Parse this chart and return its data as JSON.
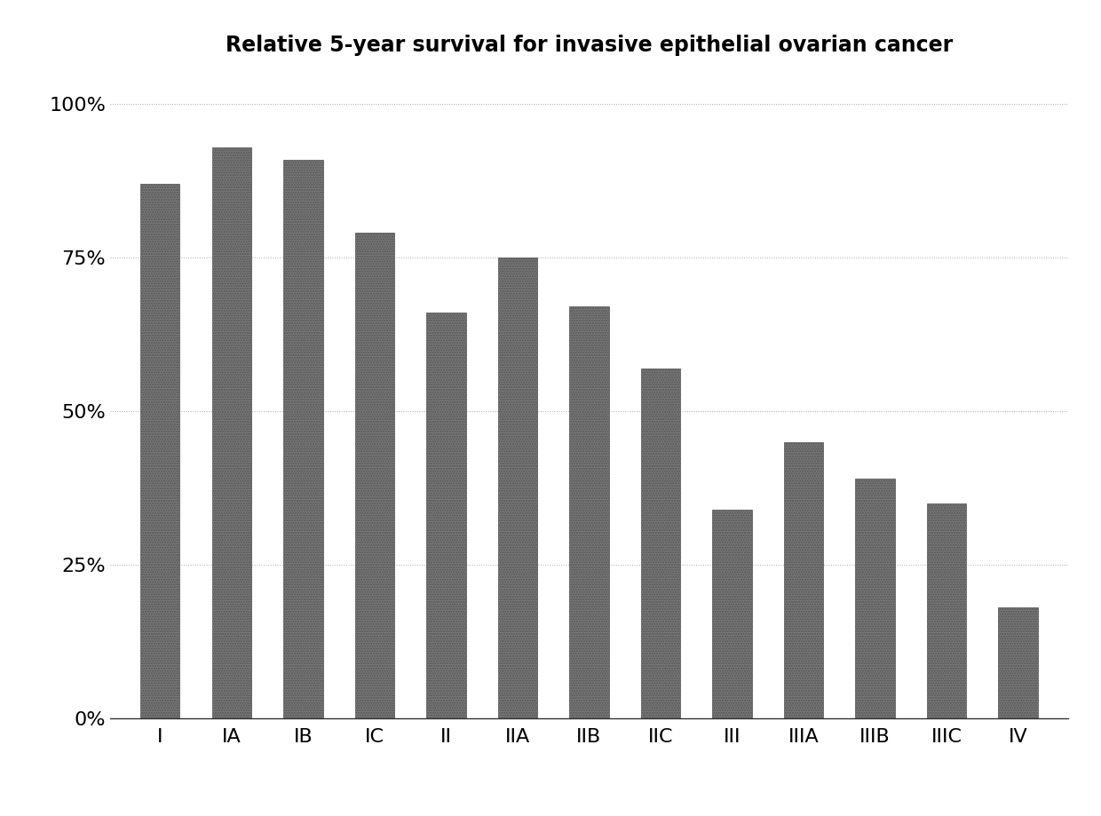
{
  "categories": [
    "I",
    "IA",
    "IB",
    "IC",
    "II",
    "IIA",
    "IIB",
    "IIC",
    "III",
    "IIIA",
    "IIIB",
    "IIIC",
    "IV"
  ],
  "values": [
    0.87,
    0.93,
    0.91,
    0.79,
    0.66,
    0.75,
    0.67,
    0.57,
    0.34,
    0.45,
    0.39,
    0.35,
    0.18
  ],
  "bar_color": "#777777",
  "bar_edgecolor": "#555555",
  "title": "Relative 5-year survival for invasive epithelial ovarian cancer",
  "title_fontsize": 17,
  "title_fontweight": "bold",
  "ylabel": "",
  "xlabel": "",
  "ylim": [
    0,
    1.05
  ],
  "yticks": [
    0.0,
    0.25,
    0.5,
    0.75,
    1.0
  ],
  "ytick_labels": [
    "0%",
    "25%",
    "50%",
    "75%",
    "100%"
  ],
  "grid_color": "#aaaaaa",
  "grid_linestyle": ":",
  "background_color": "#ffffff",
  "tick_fontsize": 16,
  "bar_width": 0.55,
  "hatch": "////"
}
